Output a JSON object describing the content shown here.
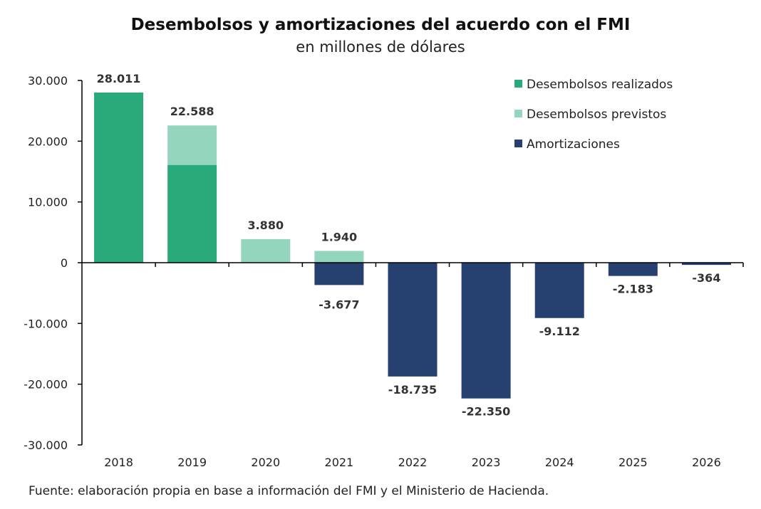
{
  "chart_data": {
    "type": "bar",
    "title": "Desembolsos y amortizaciones del acuerdo con el FMI",
    "subtitle": "en millones de dólares",
    "categories": [
      "2018",
      "2019",
      "2020",
      "2021",
      "2022",
      "2023",
      "2024",
      "2025",
      "2026"
    ],
    "series": [
      {
        "name": "Desembolsos realizados",
        "color": "#2aaa7a",
        "values": [
          28011,
          16094,
          0,
          0,
          0,
          0,
          0,
          0,
          0
        ]
      },
      {
        "name": "Desembolsos previstos",
        "color": "#94d6bd",
        "values": [
          0,
          6494,
          3880,
          1940,
          0,
          0,
          0,
          0,
          0
        ]
      },
      {
        "name": "Amortizaciones",
        "color": "#26416f",
        "values": [
          0,
          0,
          0,
          -3677,
          -18735,
          -22350,
          -9112,
          -2183,
          -364
        ]
      }
    ],
    "data_labels": [
      "28.011",
      "22.588",
      "3.880",
      "1.940",
      "-18.735",
      "-22.350",
      "-9.112",
      "-2.183",
      "-364"
    ],
    "data_label_extra": {
      "2021": "-3.677"
    },
    "ylim": [
      -30000,
      30000
    ],
    "yticks": [
      30000,
      20000,
      10000,
      0,
      -10000,
      -20000,
      -30000
    ],
    "ytick_labels": [
      "30.000",
      "20.000",
      "10.000",
      "0",
      "-10.000",
      "-20.000",
      "-30.000"
    ],
    "legend_position": "top-right",
    "grid": false
  },
  "source": "Fuente: elaboración propia en base a información del FMI y el Ministerio de Hacienda."
}
